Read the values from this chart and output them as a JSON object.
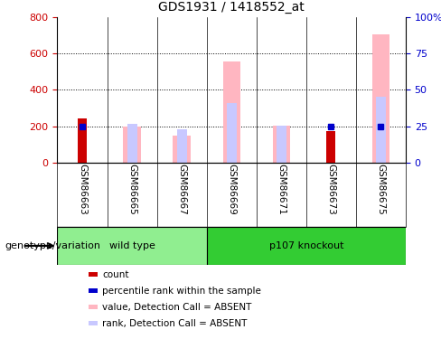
{
  "title": "GDS1931 / 1418552_at",
  "samples": [
    "GSM86663",
    "GSM86665",
    "GSM86667",
    "GSM86669",
    "GSM86671",
    "GSM86673",
    "GSM86675"
  ],
  "groups": [
    {
      "name": "wild type",
      "indices": [
        0,
        1,
        2
      ],
      "color": "#90ee90"
    },
    {
      "name": "p107 knockout",
      "indices": [
        3,
        4,
        5,
        6
      ],
      "color": "#33cc33"
    }
  ],
  "count_values": [
    245,
    0,
    0,
    0,
    0,
    175,
    0
  ],
  "percentile_values": [
    200,
    0,
    0,
    0,
    0,
    200,
    200
  ],
  "value_absent": [
    0,
    200,
    150,
    555,
    205,
    0,
    705
  ],
  "rank_absent": [
    0,
    215,
    185,
    325,
    205,
    0,
    360
  ],
  "count_color": "#cc0000",
  "percentile_color": "#0000cc",
  "value_absent_color": "#ffb6c1",
  "rank_absent_color": "#c8c8ff",
  "left_ylim": [
    0,
    800
  ],
  "right_ylim": [
    0,
    100
  ],
  "left_yticks": [
    0,
    200,
    400,
    600,
    800
  ],
  "right_yticks": [
    0,
    25,
    50,
    75,
    100
  ],
  "right_yticklabels": [
    "0",
    "25",
    "50",
    "75",
    "100%"
  ],
  "left_ytick_color": "#cc0000",
  "right_ytick_color": "#0000cc",
  "grid_levels": [
    200,
    400,
    600
  ],
  "xlabel_area_color": "#d3d3d3",
  "group_label": "genotype/variation",
  "legend_items": [
    {
      "color": "#cc0000",
      "label": "count",
      "square": true
    },
    {
      "color": "#0000cc",
      "label": "percentile rank within the sample",
      "square": true
    },
    {
      "color": "#ffb6c1",
      "label": "value, Detection Call = ABSENT",
      "square": true
    },
    {
      "color": "#c8c8ff",
      "label": "rank, Detection Call = ABSENT",
      "square": true
    }
  ]
}
